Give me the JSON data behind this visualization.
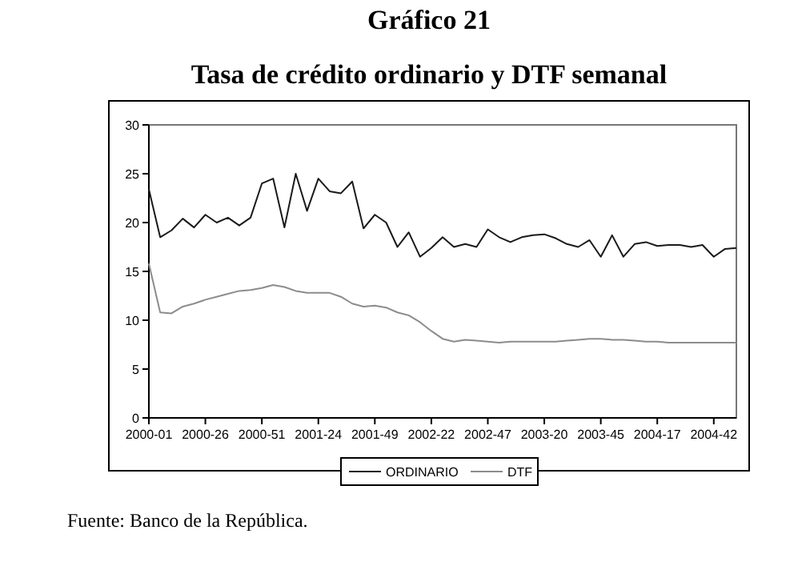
{
  "chart_data": {
    "type": "line",
    "title": "Gráfico 21",
    "subtitle": "Tasa de crédito ordinario y DTF semanal",
    "annotations": [
      "Fuente: Banco de la República."
    ],
    "categories": [
      "2000-01",
      null,
      null,
      null,
      null,
      "2000-26",
      null,
      null,
      null,
      null,
      "2000-51",
      null,
      null,
      null,
      null,
      "2001-24",
      null,
      null,
      null,
      null,
      "2001-49",
      null,
      null,
      null,
      null,
      "2002-22",
      null,
      null,
      null,
      null,
      "2002-47",
      null,
      null,
      null,
      null,
      "2003-20",
      null,
      null,
      null,
      null,
      "2003-45",
      null,
      null,
      null,
      null,
      "2004-17",
      null,
      null,
      null,
      null,
      "2004-42",
      null,
      null
    ],
    "ylim": [
      0,
      30
    ],
    "yticks": [
      0,
      5,
      10,
      15,
      20,
      25,
      30
    ],
    "legend": "bottom",
    "series": [
      {
        "name": "ORDINARIO",
        "color": "#1a1a1a",
        "values": [
          23.4,
          18.5,
          19.2,
          20.4,
          19.5,
          20.8,
          20,
          20.5,
          19.7,
          20.5,
          24,
          24.5,
          19.5,
          25,
          21.2,
          24.5,
          23.2,
          23,
          24.2,
          19.4,
          20.8,
          20,
          17.5,
          19,
          16.5,
          17.4,
          18.5,
          17.5,
          17.8,
          17.5,
          19.3,
          18.5,
          18,
          18.5,
          18.7,
          18.8,
          18.4,
          17.8,
          17.5,
          18.2,
          16.5,
          18.7,
          16.5,
          17.8,
          18,
          17.6,
          17.7,
          17.7,
          17.5,
          17.7,
          16.5,
          17.3,
          17.4
        ]
      },
      {
        "name": "DTF",
        "color": "#8c8c8c",
        "values": [
          15.8,
          10.8,
          10.7,
          11.4,
          11.7,
          12.1,
          12.4,
          12.7,
          13,
          13.1,
          13.3,
          13.6,
          13.4,
          13,
          12.8,
          12.8,
          12.8,
          12.4,
          11.7,
          11.4,
          11.5,
          11.3,
          10.8,
          10.5,
          9.8,
          8.9,
          8.1,
          7.8,
          8,
          7.9,
          7.8,
          7.7,
          7.8,
          7.8,
          7.8,
          7.8,
          7.8,
          7.9,
          8,
          8.1,
          8.1,
          8,
          8,
          7.9,
          7.8,
          7.8,
          7.7,
          7.7,
          7.7,
          7.7,
          7.7,
          7.7,
          7.7
        ]
      }
    ]
  }
}
